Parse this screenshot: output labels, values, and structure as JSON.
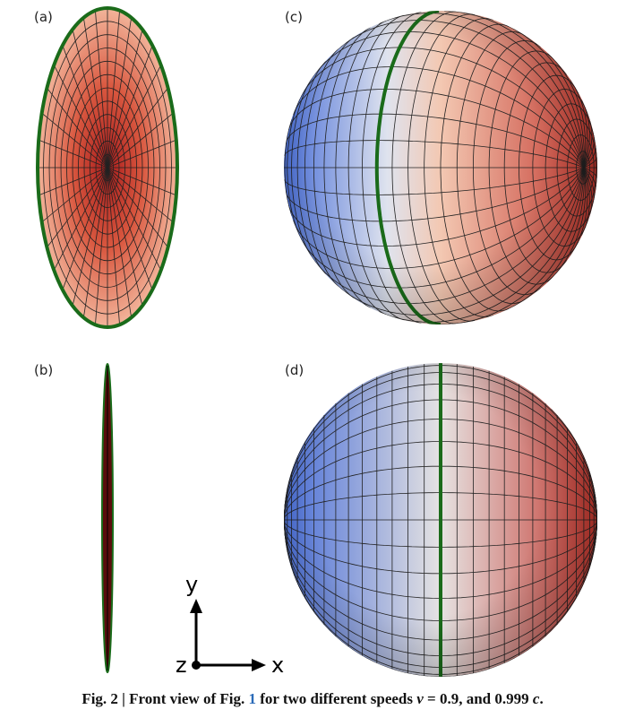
{
  "panels": [
    {
      "label": "(a)"
    },
    {
      "label": "(b)"
    },
    {
      "label": "(c)"
    },
    {
      "label": "(d)"
    }
  ],
  "axes": {
    "y": "y",
    "z": "z",
    "x": "x"
  },
  "caption": {
    "prefix": "Fig. 2 | Front view of Fig. ",
    "ref": "1",
    "middle": " for two different speeds ",
    "var": "v",
    "values": " = 0.9, and 0.999 ",
    "unit": "c",
    "end": "."
  }
}
